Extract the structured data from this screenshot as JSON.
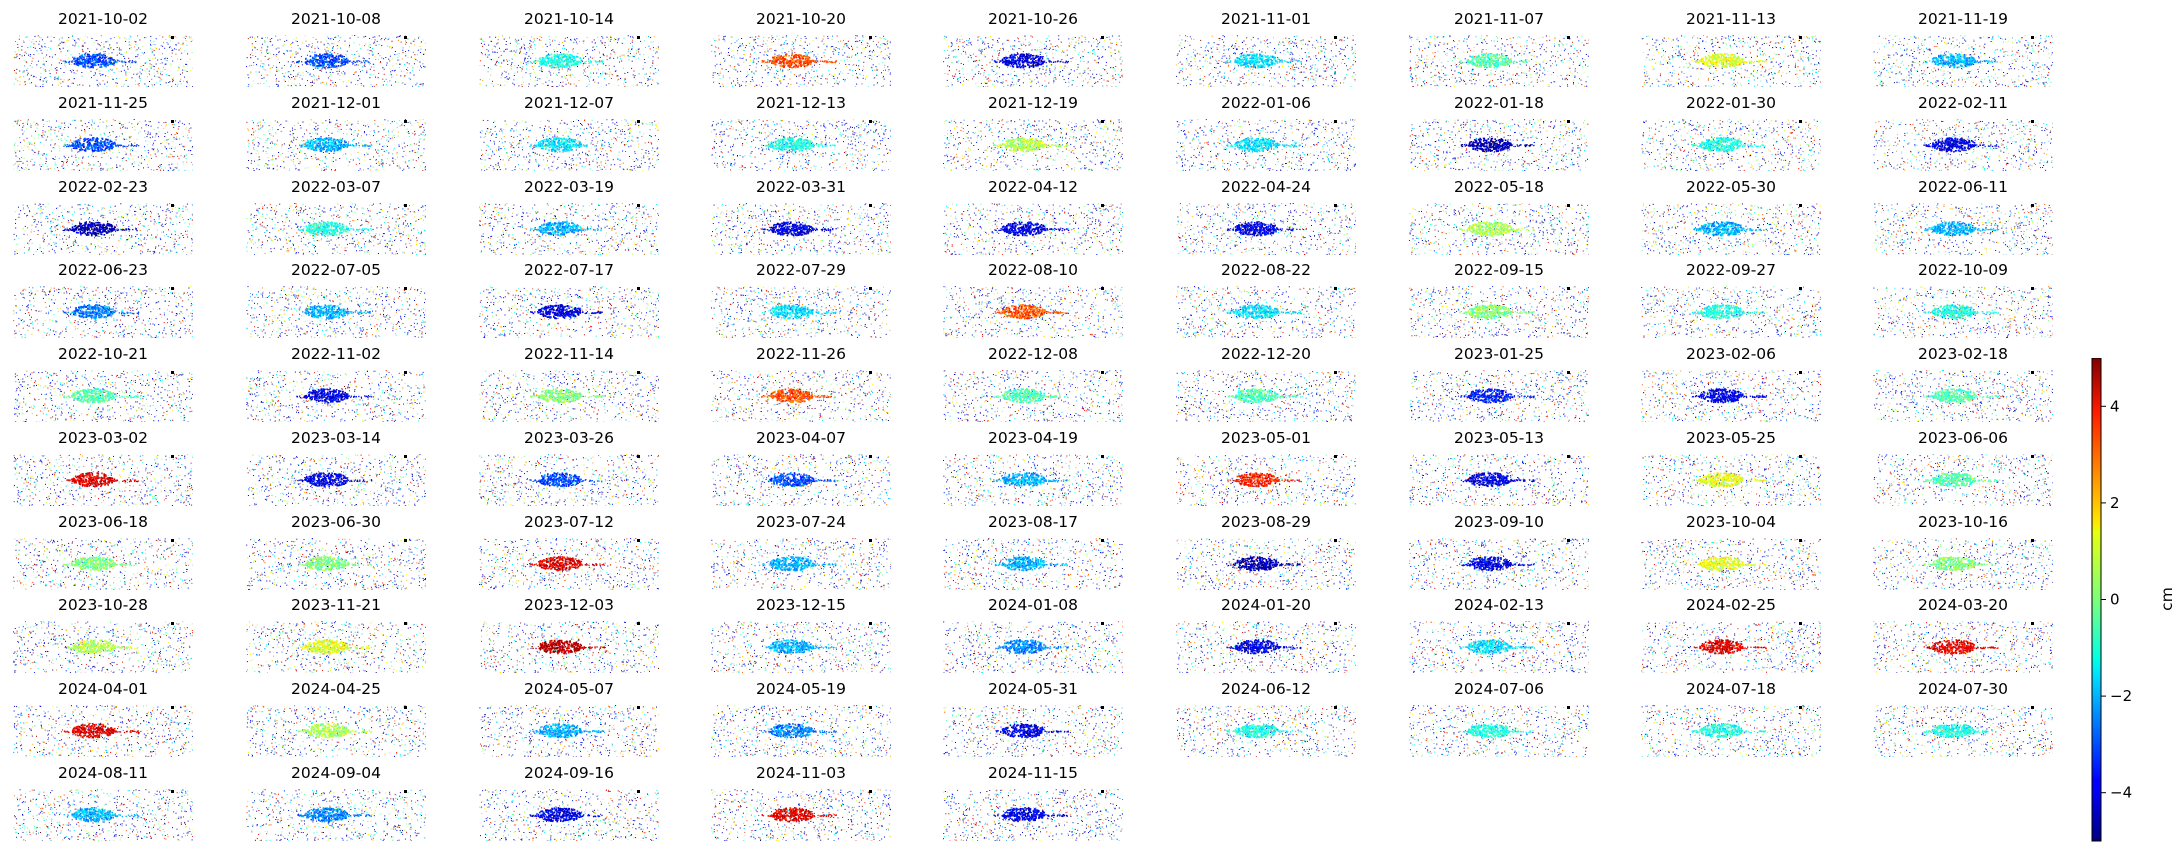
{
  "chart_data": {
    "type": "heatmap",
    "subtype": "small-multiples displacement maps",
    "colormap": "jet",
    "grid": "off",
    "panel_titles": [
      "2021-10-02",
      "2021-10-08",
      "2021-10-14",
      "2021-10-20",
      "2021-10-26",
      "2021-11-01",
      "2021-11-07",
      "2021-11-13",
      "2021-11-19",
      "2021-11-25",
      "2021-12-01",
      "2021-12-07",
      "2021-12-13",
      "2021-12-19",
      "2022-01-06",
      "2022-01-18",
      "2022-01-30",
      "2022-02-11",
      "2022-02-23",
      "2022-03-07",
      "2022-03-19",
      "2022-03-31",
      "2022-04-12",
      "2022-04-24",
      "2022-05-18",
      "2022-05-30",
      "2022-06-11",
      "2022-06-23",
      "2022-07-05",
      "2022-07-17",
      "2022-07-29",
      "2022-08-10",
      "2022-08-22",
      "2022-09-15",
      "2022-09-27",
      "2022-10-09",
      "2022-10-21",
      "2022-11-02",
      "2022-11-14",
      "2022-11-26",
      "2022-12-08",
      "2022-12-20",
      "2023-01-25",
      "2023-02-06",
      "2023-02-18",
      "2023-03-02",
      "2023-03-14",
      "2023-03-26",
      "2023-04-07",
      "2023-04-19",
      "2023-05-01",
      "2023-05-13",
      "2023-05-25",
      "2023-06-06",
      "2023-06-18",
      "2023-06-30",
      "2023-07-12",
      "2023-07-24",
      "2023-08-17",
      "2023-08-29",
      "2023-09-10",
      "2023-10-04",
      "2023-10-16",
      "2023-10-28",
      "2023-11-21",
      "2023-12-03",
      "2023-12-15",
      "2024-01-08",
      "2024-01-20",
      "2024-02-13",
      "2024-02-25",
      "2024-03-20",
      "2024-04-01",
      "2024-04-25",
      "2024-05-07",
      "2024-05-19",
      "2024-05-31",
      "2024-06-12",
      "2024-07-06",
      "2024-07-18",
      "2024-07-30",
      "2024-08-11",
      "2024-09-04",
      "2024-09-16",
      "2024-11-03",
      "2024-11-15"
    ],
    "center_values": [
      -3.0,
      -3.0,
      -1.0,
      3.0,
      -4.0,
      -1.5,
      -0.5,
      1.0,
      -2.0,
      -3.0,
      -2.0,
      -1.5,
      -1.0,
      0.5,
      -1.5,
      -4.5,
      -1.0,
      -4.0,
      -4.5,
      -1.0,
      -2.0,
      -4.0,
      -4.0,
      -4.0,
      0.5,
      -2.0,
      -2.0,
      -2.5,
      -2.0,
      -4.0,
      -1.5,
      3.0,
      -1.5,
      0.0,
      -1.0,
      -1.0,
      -0.5,
      -4.0,
      0.0,
      3.0,
      -0.5,
      -0.5,
      -3.5,
      -4.0,
      -0.5,
      4.0,
      -4.0,
      -3.0,
      -3.0,
      -2.0,
      3.5,
      -4.0,
      1.0,
      -0.5,
      0.0,
      0.0,
      4.0,
      -2.0,
      -2.0,
      -4.5,
      -4.0,
      1.0,
      0.0,
      0.5,
      1.0,
      4.5,
      -2.0,
      -2.5,
      -4.0,
      -1.5,
      4.0,
      4.0,
      4.0,
      0.5,
      -2.0,
      -2.5,
      -4.0,
      -1.0,
      -1.0,
      -1.0,
      -1.0,
      -2.0,
      -2.5,
      -4.0,
      4.0,
      -4.0
    ],
    "colorbar": {
      "label": "cm",
      "ticks": [
        -4,
        -2,
        0,
        2,
        4
      ],
      "tick_labels": [
        "−4",
        "−2",
        "0",
        "2",
        "4"
      ],
      "vmin": -5,
      "vmax": 5
    }
  }
}
